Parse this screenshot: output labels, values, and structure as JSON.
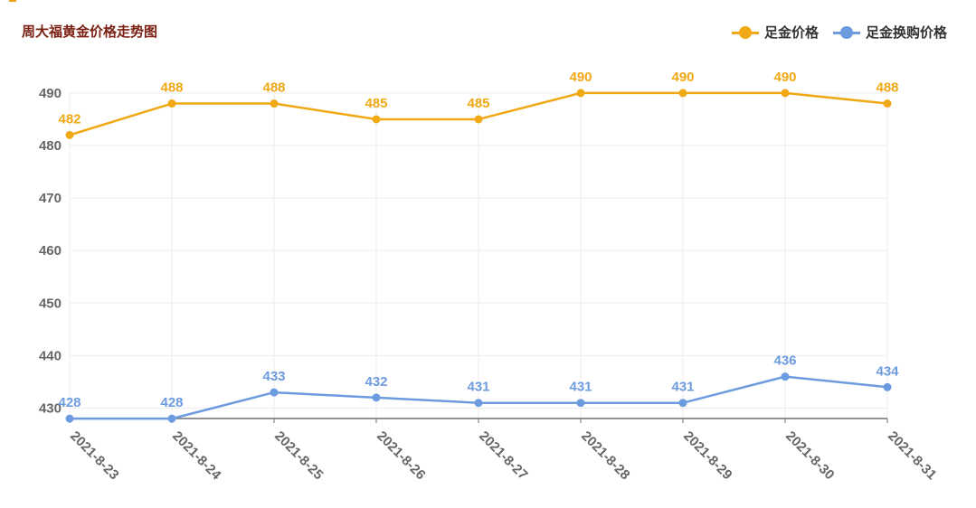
{
  "colors": {
    "series1": "#f0a815",
    "series2": "#6d9be0",
    "title": "#7a1f12",
    "axis_text": "#666666"
  },
  "chart_data": {
    "type": "line",
    "title": "周大福黄金价格走势图",
    "x": [
      "2021-8-23",
      "2021-8-24",
      "2021-8-25",
      "2021-8-26",
      "2021-8-27",
      "2021-8-28",
      "2021-8-29",
      "2021-8-30",
      "2021-8-31"
    ],
    "series": [
      {
        "name": "足金价格",
        "values": [
          482,
          488,
          488,
          485,
          485,
          490,
          490,
          490,
          488
        ]
      },
      {
        "name": "足金换购价格",
        "values": [
          428,
          428,
          433,
          432,
          431,
          431,
          431,
          436,
          434
        ]
      }
    ],
    "yticks": [
      430,
      440,
      450,
      460,
      470,
      480,
      490
    ],
    "ylim": [
      428,
      490
    ],
    "grid": true,
    "legend": "top-right",
    "data_labels": true
  }
}
